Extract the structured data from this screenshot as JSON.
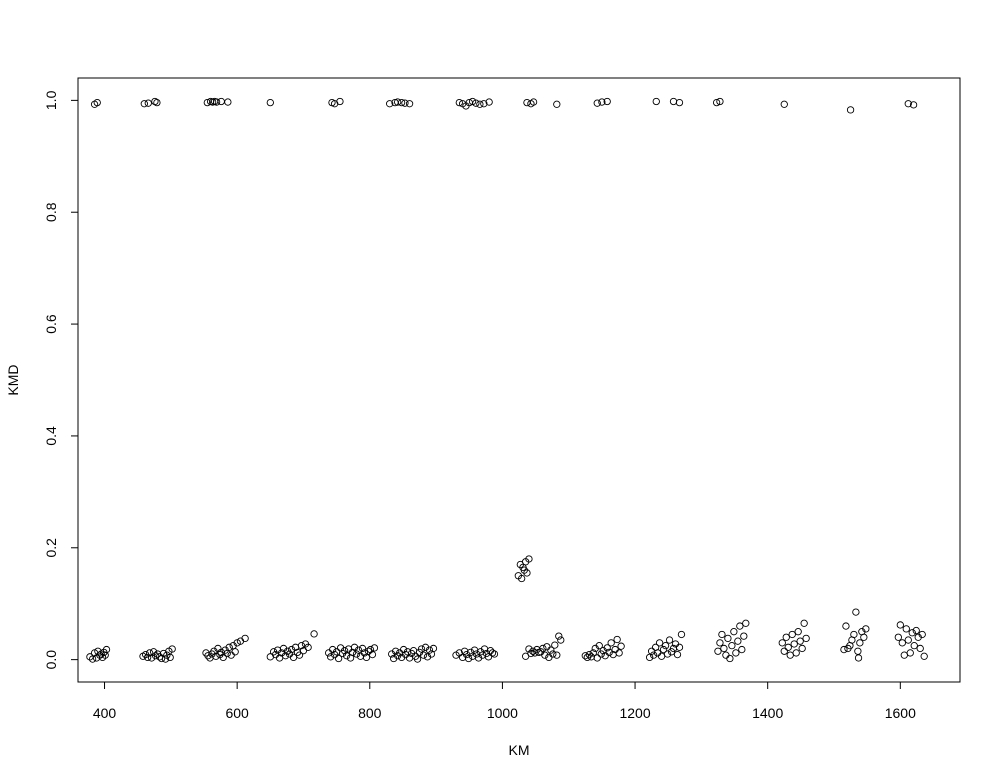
{
  "chart_data": {
    "type": "scatter",
    "title": "",
    "xlabel": "KM",
    "ylabel": "KMD",
    "xlim": [
      360,
      1690
    ],
    "ylim": [
      -0.04,
      1.04
    ],
    "x_ticks": [
      400,
      600,
      800,
      1000,
      1200,
      1400,
      1600
    ],
    "y_ticks": [
      0.0,
      0.2,
      0.4,
      0.6,
      0.8,
      1.0
    ],
    "x_tick_labels": [
      "400",
      "600",
      "800",
      "1000",
      "1200",
      "1400",
      "1600"
    ],
    "y_tick_labels": [
      "0.0",
      "0.2",
      "0.4",
      "0.6",
      "0.8",
      "1.0"
    ],
    "grid": false,
    "marker": "open-circle",
    "marker_color": "#000000",
    "series": [
      {
        "points": [
          [
            385,
            0.993
          ],
          [
            389,
            0.996
          ],
          [
            460,
            0.994
          ],
          [
            466,
            0.995
          ],
          [
            476,
            0.998
          ],
          [
            479,
            0.996
          ],
          [
            555,
            0.996
          ],
          [
            560,
            0.998
          ],
          [
            563,
            0.997
          ],
          [
            566,
            0.998
          ],
          [
            569,
            0.997
          ],
          [
            576,
            0.998
          ],
          [
            586,
            0.997
          ],
          [
            650,
            0.996
          ],
          [
            743,
            0.996
          ],
          [
            747,
            0.994
          ],
          [
            755,
            0.998
          ],
          [
            830,
            0.994
          ],
          [
            838,
            0.996
          ],
          [
            842,
            0.997
          ],
          [
            848,
            0.996
          ],
          [
            853,
            0.995
          ],
          [
            860,
            0.994
          ],
          [
            935,
            0.996
          ],
          [
            940,
            0.994
          ],
          [
            945,
            0.99
          ],
          [
            950,
            0.996
          ],
          [
            955,
            0.998
          ],
          [
            960,
            0.995
          ],
          [
            966,
            0.993
          ],
          [
            972,
            0.994
          ],
          [
            980,
            0.997
          ],
          [
            1037,
            0.996
          ],
          [
            1043,
            0.994
          ],
          [
            1047,
            0.997
          ],
          [
            1082,
            0.993
          ],
          [
            1143,
            0.995
          ],
          [
            1150,
            0.997
          ],
          [
            1158,
            0.998
          ],
          [
            1232,
            0.998
          ],
          [
            1258,
            0.998
          ],
          [
            1267,
            0.996
          ],
          [
            1323,
            0.996
          ],
          [
            1328,
            0.998
          ],
          [
            1425,
            0.993
          ],
          [
            1525,
            0.983
          ],
          [
            1612,
            0.994
          ],
          [
            1620,
            0.992
          ],
          [
            1024,
            0.15
          ],
          [
            1027,
            0.17
          ],
          [
            1029,
            0.145
          ],
          [
            1031,
            0.165
          ],
          [
            1033,
            0.16
          ],
          [
            1035,
            0.175
          ],
          [
            1037,
            0.155
          ],
          [
            1040,
            0.18
          ],
          [
            378,
            0.005
          ],
          [
            382,
            0.001
          ],
          [
            385,
            0.012
          ],
          [
            388,
            0.003
          ],
          [
            390,
            0.015
          ],
          [
            393,
            0.008
          ],
          [
            395,
            0.01
          ],
          [
            397,
            0.004
          ],
          [
            399,
            0.013
          ],
          [
            401,
            0.008
          ],
          [
            403,
            0.018
          ],
          [
            458,
            0.006
          ],
          [
            462,
            0.009
          ],
          [
            465,
            0.004
          ],
          [
            468,
            0.012
          ],
          [
            471,
            0.003
          ],
          [
            474,
            0.014
          ],
          [
            477,
            0.007
          ],
          [
            480,
            0.01
          ],
          [
            483,
            0.005
          ],
          [
            486,
            0.002
          ],
          [
            489,
            0.011
          ],
          [
            492,
            0.001
          ],
          [
            494,
            0.008
          ],
          [
            497,
            0.015
          ],
          [
            499,
            0.004
          ],
          [
            502,
            0.019
          ],
          [
            553,
            0.012
          ],
          [
            556,
            0.007
          ],
          [
            559,
            0.003
          ],
          [
            562,
            0.01
          ],
          [
            565,
            0.015
          ],
          [
            568,
            0.006
          ],
          [
            571,
            0.02
          ],
          [
            574,
            0.009
          ],
          [
            576,
            0.013
          ],
          [
            579,
            0.004
          ],
          [
            582,
            0.017
          ],
          [
            585,
            0.011
          ],
          [
            588,
            0.022
          ],
          [
            591,
            0.008
          ],
          [
            594,
            0.025
          ],
          [
            597,
            0.014
          ],
          [
            600,
            0.03
          ],
          [
            605,
            0.033
          ],
          [
            612,
            0.038
          ],
          [
            650,
            0.005
          ],
          [
            655,
            0.014
          ],
          [
            658,
            0.009
          ],
          [
            661,
            0.017
          ],
          [
            664,
            0.003
          ],
          [
            667,
            0.012
          ],
          [
            670,
            0.02
          ],
          [
            673,
            0.007
          ],
          [
            676,
            0.015
          ],
          [
            679,
            0.01
          ],
          [
            682,
            0.018
          ],
          [
            685,
            0.004
          ],
          [
            688,
            0.022
          ],
          [
            691,
            0.013
          ],
          [
            694,
            0.008
          ],
          [
            697,
            0.025
          ],
          [
            700,
            0.016
          ],
          [
            703,
            0.028
          ],
          [
            707,
            0.022
          ],
          [
            716,
            0.046
          ],
          [
            738,
            0.012
          ],
          [
            741,
            0.005
          ],
          [
            744,
            0.018
          ],
          [
            747,
            0.009
          ],
          [
            750,
            0.014
          ],
          [
            753,
            0.002
          ],
          [
            756,
            0.021
          ],
          [
            759,
            0.011
          ],
          [
            762,
            0.016
          ],
          [
            765,
            0.007
          ],
          [
            768,
            0.019
          ],
          [
            771,
            0.003
          ],
          [
            774,
            0.013
          ],
          [
            777,
            0.022
          ],
          [
            780,
            0.01
          ],
          [
            783,
            0.017
          ],
          [
            786,
            0.006
          ],
          [
            789,
            0.02
          ],
          [
            792,
            0.012
          ],
          [
            795,
            0.004
          ],
          [
            798,
            0.015
          ],
          [
            801,
            0.018
          ],
          [
            804,
            0.009
          ],
          [
            807,
            0.021
          ],
          [
            833,
            0.01
          ],
          [
            836,
            0.002
          ],
          [
            839,
            0.015
          ],
          [
            842,
            0.007
          ],
          [
            845,
            0.012
          ],
          [
            848,
            0.004
          ],
          [
            851,
            0.018
          ],
          [
            854,
            0.009
          ],
          [
            857,
            0.014
          ],
          [
            860,
            0.003
          ],
          [
            863,
            0.011
          ],
          [
            866,
            0.016
          ],
          [
            869,
            0.006
          ],
          [
            872,
            0.001
          ],
          [
            875,
            0.013
          ],
          [
            878,
            0.019
          ],
          [
            881,
            0.008
          ],
          [
            884,
            0.022
          ],
          [
            887,
            0.005
          ],
          [
            890,
            0.017
          ],
          [
            893,
            0.01
          ],
          [
            896,
            0.02
          ],
          [
            930,
            0.008
          ],
          [
            935,
            0.012
          ],
          [
            940,
            0.004
          ],
          [
            943,
            0.015
          ],
          [
            946,
            0.009
          ],
          [
            949,
            0.002
          ],
          [
            952,
            0.013
          ],
          [
            955,
            0.006
          ],
          [
            958,
            0.017
          ],
          [
            961,
            0.01
          ],
          [
            964,
            0.003
          ],
          [
            967,
            0.014
          ],
          [
            970,
            0.008
          ],
          [
            973,
            0.019
          ],
          [
            976,
            0.011
          ],
          [
            979,
            0.005
          ],
          [
            982,
            0.016
          ],
          [
            985,
            0.012
          ],
          [
            988,
            0.01
          ],
          [
            1035,
            0.006
          ],
          [
            1040,
            0.019
          ],
          [
            1043,
            0.011
          ],
          [
            1046,
            0.015
          ],
          [
            1049,
            0.012
          ],
          [
            1052,
            0.018
          ],
          [
            1055,
            0.013
          ],
          [
            1058,
            0.014
          ],
          [
            1061,
            0.02
          ],
          [
            1064,
            0.008
          ],
          [
            1067,
            0.023
          ],
          [
            1070,
            0.004
          ],
          [
            1073,
            0.017
          ],
          [
            1076,
            0.01
          ],
          [
            1079,
            0.026
          ],
          [
            1082,
            0.008
          ],
          [
            1085,
            0.042
          ],
          [
            1088,
            0.035
          ],
          [
            1125,
            0.007
          ],
          [
            1128,
            0.004
          ],
          [
            1131,
            0.009
          ],
          [
            1134,
            0.005
          ],
          [
            1137,
            0.012
          ],
          [
            1140,
            0.02
          ],
          [
            1143,
            0.003
          ],
          [
            1146,
            0.025
          ],
          [
            1149,
            0.01
          ],
          [
            1152,
            0.016
          ],
          [
            1155,
            0.007
          ],
          [
            1158,
            0.021
          ],
          [
            1161,
            0.013
          ],
          [
            1164,
            0.03
          ],
          [
            1167,
            0.009
          ],
          [
            1170,
            0.018
          ],
          [
            1173,
            0.036
          ],
          [
            1176,
            0.012
          ],
          [
            1179,
            0.024
          ],
          [
            1222,
            0.004
          ],
          [
            1225,
            0.015
          ],
          [
            1228,
            0.008
          ],
          [
            1231,
            0.022
          ],
          [
            1234,
            0.012
          ],
          [
            1237,
            0.03
          ],
          [
            1240,
            0.006
          ],
          [
            1243,
            0.018
          ],
          [
            1246,
            0.025
          ],
          [
            1249,
            0.01
          ],
          [
            1252,
            0.035
          ],
          [
            1255,
            0.014
          ],
          [
            1258,
            0.02
          ],
          [
            1261,
            0.028
          ],
          [
            1264,
            0.009
          ],
          [
            1267,
            0.022
          ],
          [
            1270,
            0.045
          ],
          [
            1325,
            0.015
          ],
          [
            1328,
            0.03
          ],
          [
            1331,
            0.045
          ],
          [
            1334,
            0.02
          ],
          [
            1337,
            0.008
          ],
          [
            1340,
            0.038
          ],
          [
            1343,
            0.002
          ],
          [
            1346,
            0.025
          ],
          [
            1349,
            0.05
          ],
          [
            1352,
            0.012
          ],
          [
            1355,
            0.033
          ],
          [
            1358,
            0.06
          ],
          [
            1361,
            0.018
          ],
          [
            1364,
            0.042
          ],
          [
            1367,
            0.065
          ],
          [
            1422,
            0.03
          ],
          [
            1425,
            0.015
          ],
          [
            1428,
            0.04
          ],
          [
            1431,
            0.022
          ],
          [
            1434,
            0.008
          ],
          [
            1437,
            0.045
          ],
          [
            1440,
            0.028
          ],
          [
            1443,
            0.012
          ],
          [
            1446,
            0.05
          ],
          [
            1449,
            0.033
          ],
          [
            1452,
            0.02
          ],
          [
            1455,
            0.065
          ],
          [
            1458,
            0.038
          ],
          [
            1515,
            0.018
          ],
          [
            1518,
            0.06
          ],
          [
            1521,
            0.02
          ],
          [
            1524,
            0.025
          ],
          [
            1527,
            0.035
          ],
          [
            1530,
            0.045
          ],
          [
            1533,
            0.085
          ],
          [
            1536,
            0.015
          ],
          [
            1539,
            0.03
          ],
          [
            1542,
            0.05
          ],
          [
            1545,
            0.04
          ],
          [
            1548,
            0.055
          ],
          [
            1537,
            0.003
          ],
          [
            1597,
            0.04
          ],
          [
            1600,
            0.062
          ],
          [
            1603,
            0.03
          ],
          [
            1606,
            0.008
          ],
          [
            1609,
            0.055
          ],
          [
            1612,
            0.035
          ],
          [
            1615,
            0.012
          ],
          [
            1618,
            0.048
          ],
          [
            1621,
            0.025
          ],
          [
            1624,
            0.052
          ],
          [
            1627,
            0.04
          ],
          [
            1630,
            0.02
          ],
          [
            1633,
            0.045
          ],
          [
            1636,
            0.006
          ]
        ]
      }
    ]
  }
}
